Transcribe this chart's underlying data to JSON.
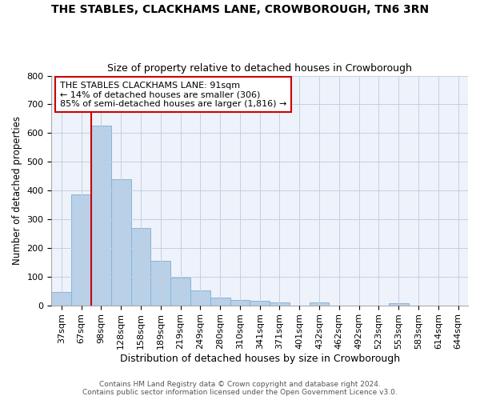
{
  "title_line1": "THE STABLES, CLACKHAMS LANE, CROWBOROUGH, TN6 3RN",
  "title_line2": "Size of property relative to detached houses in Crowborough",
  "xlabel": "Distribution of detached houses by size in Crowborough",
  "ylabel": "Number of detached properties",
  "footnote1": "Contains HM Land Registry data © Crown copyright and database right 2024.",
  "footnote2": "Contains public sector information licensed under the Open Government Licence v3.0.",
  "categories": [
    "37sqm",
    "67sqm",
    "98sqm",
    "128sqm",
    "158sqm",
    "189sqm",
    "219sqm",
    "249sqm",
    "280sqm",
    "310sqm",
    "341sqm",
    "371sqm",
    "401sqm",
    "432sqm",
    "462sqm",
    "492sqm",
    "523sqm",
    "553sqm",
    "583sqm",
    "614sqm",
    "644sqm"
  ],
  "values": [
    47,
    385,
    625,
    440,
    268,
    155,
    97,
    52,
    28,
    17,
    15,
    10,
    0,
    10,
    0,
    0,
    0,
    7,
    0,
    0,
    0
  ],
  "bar_color": "#b8d0e8",
  "bar_edge_color": "#8ab4d4",
  "ylim": [
    0,
    800
  ],
  "yticks": [
    0,
    100,
    200,
    300,
    400,
    500,
    600,
    700,
    800
  ],
  "marker_label_line1": "THE STABLES CLACKHAMS LANE: 91sqm",
  "marker_label_line2": "← 14% of detached houses are smaller (306)",
  "marker_label_line3": "85% of semi-detached houses are larger (1,816) →",
  "marker_color": "#cc0000",
  "bg_color": "#eef2fa",
  "grid_color": "#c5cfe0",
  "title1_fontsize": 10,
  "title2_fontsize": 9,
  "ylabel_fontsize": 8.5,
  "xlabel_fontsize": 9,
  "tick_fontsize": 8,
  "footnote_fontsize": 6.5
}
